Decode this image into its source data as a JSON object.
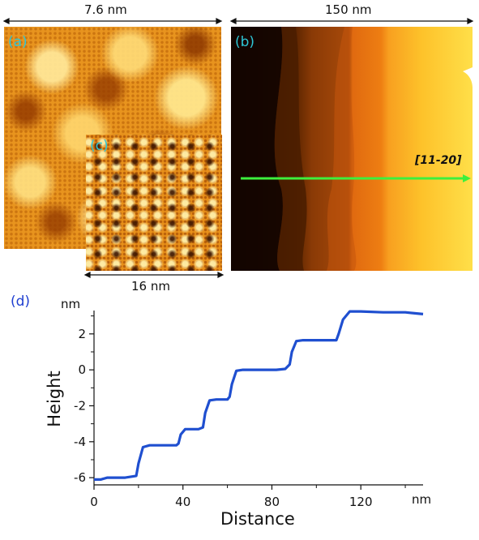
{
  "panels": {
    "a": {
      "letter": "(a)",
      "scale": "7.6 nm"
    },
    "b": {
      "letter": "(b)",
      "scale": "150 nm",
      "direction": "[11-20]"
    },
    "c": {
      "letter": "(c)",
      "scale": "16 nm"
    },
    "d": {
      "letter": "(d)"
    }
  },
  "colors": {
    "panel_letter": "#2ec6d6",
    "profile_line": "#1f4fd0",
    "scan_line": "#3df03d",
    "panel_d_letter": "#1f3fd0"
  },
  "chart_data": {
    "type": "line",
    "xlabel": "Distance",
    "ylabel": "Height",
    "x_unit": "nm",
    "y_unit": "nm",
    "xlim": [
      0,
      148
    ],
    "ylim": [
      -6.4,
      3.3
    ],
    "x_ticks": [
      0,
      40,
      80,
      120
    ],
    "y_ticks": [
      -6,
      -4,
      -2,
      0,
      2
    ],
    "series": [
      {
        "x": [
          0,
          3,
          6,
          14,
          19,
          20,
          22,
          25,
          30,
          37,
          38,
          39,
          41,
          44,
          47,
          49,
          50,
          52,
          55,
          60,
          61,
          62,
          64,
          67,
          72,
          80,
          82,
          86,
          88,
          89,
          91,
          94,
          100,
          109,
          110,
          112,
          115,
          120,
          130,
          140,
          148
        ],
        "y": [
          -6.1,
          -6.1,
          -6.0,
          -6.0,
          -5.9,
          -5.2,
          -4.3,
          -4.2,
          -4.2,
          -4.2,
          -4.1,
          -3.6,
          -3.3,
          -3.3,
          -3.3,
          -3.2,
          -2.4,
          -1.7,
          -1.65,
          -1.65,
          -1.5,
          -0.8,
          -0.05,
          0.0,
          0.0,
          0.0,
          0.0,
          0.05,
          0.3,
          1.0,
          1.6,
          1.65,
          1.65,
          1.65,
          2.0,
          2.8,
          3.25,
          3.25,
          3.2,
          3.2,
          3.1
        ]
      }
    ]
  }
}
